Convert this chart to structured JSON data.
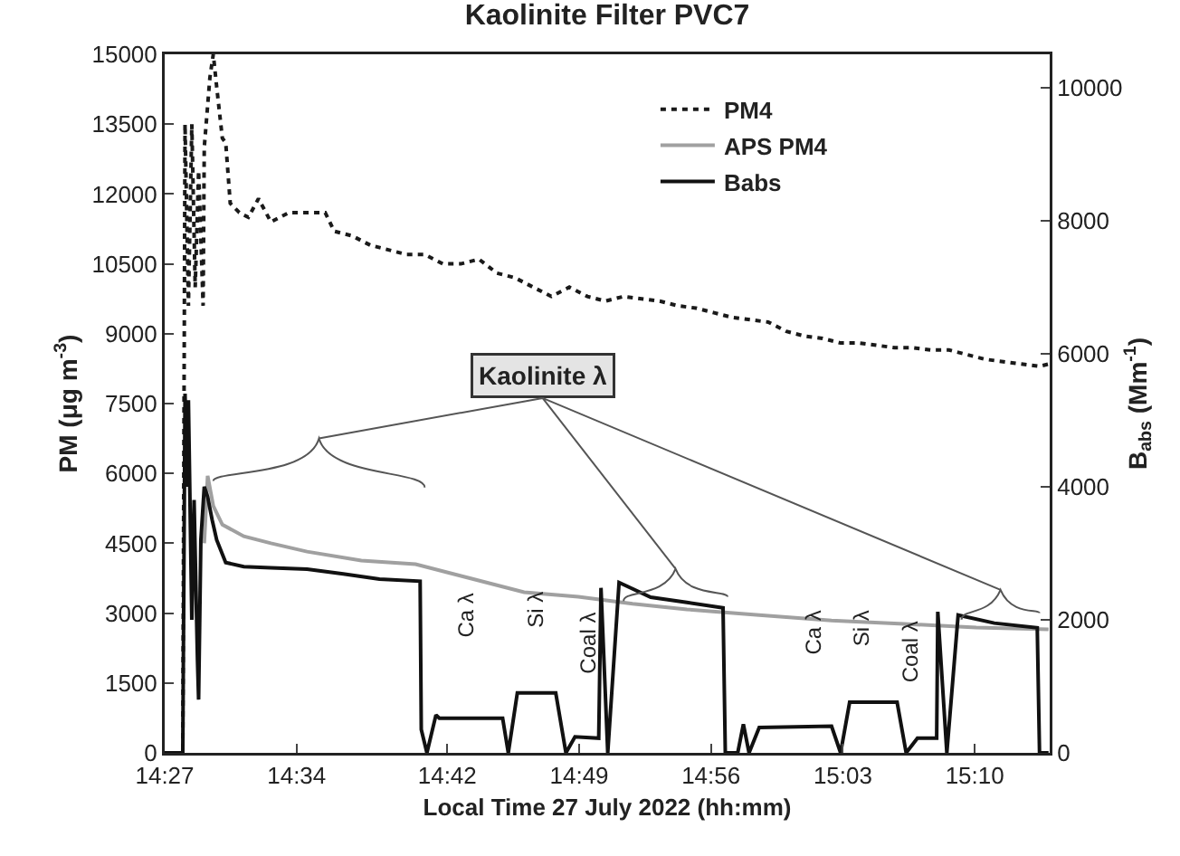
{
  "chart_data": {
    "type": "line",
    "title": "Kaolinite Filter PVC7",
    "xlabel": "Local Time 27 July 2022 (hh:mm)",
    "ylabel": "PM (μg m$^{-3}$)",
    "y2label": "B$_{abs}$ (Mm$^{-1}$)",
    "xlim": [
      14.45,
      15.233
    ],
    "xticks": [
      {
        "value": 14.45,
        "label": "14:27"
      },
      {
        "value": 14.5667,
        "label": "14:34"
      },
      {
        "value": 14.7,
        "label": "14:42"
      },
      {
        "value": 14.8167,
        "label": "14:49"
      },
      {
        "value": 14.9333,
        "label": "14:56"
      },
      {
        "value": 15.05,
        "label": "15:03"
      },
      {
        "value": 15.1667,
        "label": "15:10"
      }
    ],
    "ylim": [
      0,
      15000
    ],
    "yticks": [
      0,
      1500,
      3000,
      4500,
      6000,
      7500,
      9000,
      10500,
      12000,
      13500,
      15000
    ],
    "y2lim": [
      0,
      10500
    ],
    "y2ticks": [
      0,
      2000,
      4000,
      6000,
      8000,
      10000
    ],
    "grid": false,
    "legend": "top right",
    "marker": "none",
    "series": [
      {
        "name": "PM4",
        "color": "#1a1a1a",
        "line_style": "dotted",
        "x": [
          14.45,
          14.466,
          14.468,
          14.471,
          14.474,
          14.477,
          14.48,
          14.484,
          14.485,
          14.49,
          14.493,
          14.496,
          14.501,
          14.504,
          14.508,
          14.516,
          14.524,
          14.533,
          14.544,
          14.56,
          14.576,
          14.592,
          14.6,
          14.616,
          14.632,
          14.648,
          14.664,
          14.68,
          14.696,
          14.712,
          14.728,
          14.744,
          14.76,
          14.776,
          14.792,
          14.808,
          14.824,
          14.84,
          14.856,
          14.872,
          14.888,
          14.904,
          14.92,
          14.936,
          14.952,
          14.968,
          14.984,
          15.0,
          15.016,
          15.032,
          15.048,
          15.064,
          15.08,
          15.096,
          15.112,
          15.128,
          15.144,
          15.16,
          15.176,
          15.192,
          15.208,
          15.224,
          15.232
        ],
        "values": [
          0,
          0,
          13500,
          9600,
          13500,
          10000,
          12500,
          9600,
          13000,
          14500,
          15000,
          14300,
          13200,
          13100,
          11800,
          11600,
          11500,
          11900,
          11400,
          11600,
          11600,
          11600,
          11200,
          11100,
          10900,
          10800,
          10700,
          10700,
          10500,
          10500,
          10600,
          10300,
          10200,
          10000,
          9800,
          10000,
          9800,
          9700,
          9800,
          9750,
          9700,
          9600,
          9550,
          9450,
          9350,
          9300,
          9250,
          9050,
          8950,
          8900,
          8800,
          8800,
          8750,
          8700,
          8700,
          8650,
          8650,
          8550,
          8450,
          8400,
          8350,
          8300,
          8350
        ]
      },
      {
        "name": "APS PM4",
        "color": "#a0a0a0",
        "line_style": "solid",
        "x": [
          14.485,
          14.488,
          14.493,
          14.501,
          14.52,
          14.544,
          14.576,
          14.624,
          14.672,
          14.72,
          14.768,
          14.816,
          14.864,
          14.912,
          14.976,
          15.04,
          15.104,
          15.168,
          15.232
        ],
        "values": [
          4500,
          5950,
          5300,
          4900,
          4650,
          4500,
          4320,
          4130,
          4050,
          3750,
          3450,
          3350,
          3200,
          3080,
          2960,
          2840,
          2770,
          2690,
          2650
        ]
      },
      {
        "name": "Babs",
        "color": "#111111",
        "line_style": "solid",
        "axis": "y2",
        "x": [
          14.45,
          14.466,
          14.468,
          14.47,
          14.471,
          14.474,
          14.476,
          14.479,
          14.48,
          14.482,
          14.485,
          14.488,
          14.492,
          14.496,
          14.504,
          14.52,
          14.544,
          14.576,
          14.608,
          14.64,
          14.676,
          14.677,
          14.682,
          14.69,
          14.693,
          14.749,
          14.754,
          14.762,
          14.796,
          14.805,
          14.813,
          14.834,
          14.836,
          14.842,
          14.852,
          14.88,
          14.912,
          14.944,
          14.946,
          14.957,
          14.962,
          14.967,
          14.976,
          15.04,
          15.048,
          15.056,
          15.098,
          15.106,
          15.116,
          15.133,
          15.134,
          15.142,
          15.152,
          15.184,
          15.222,
          15.224,
          15.232
        ],
        "values": [
          0,
          0,
          5400,
          4000,
          5300,
          2000,
          3800,
          1400,
          800,
          3200,
          4000,
          3850,
          3500,
          3200,
          2860,
          2800,
          2780,
          2760,
          2690,
          2610,
          2580,
          350,
          0,
          570,
          520,
          520,
          0,
          900,
          900,
          0,
          240,
          220,
          2480,
          0,
          2560,
          2340,
          2260,
          2180,
          0,
          0,
          430,
          0,
          380,
          400,
          0,
          760,
          760,
          0,
          220,
          220,
          2120,
          0,
          2070,
          1950,
          1880,
          0,
          0
        ]
      }
    ],
    "annotations": [
      "Kaolinite λ",
      "Ca λ",
      "Si λ",
      "Coal λ",
      "Ca λ",
      "Si λ",
      "Coal λ"
    ]
  }
}
